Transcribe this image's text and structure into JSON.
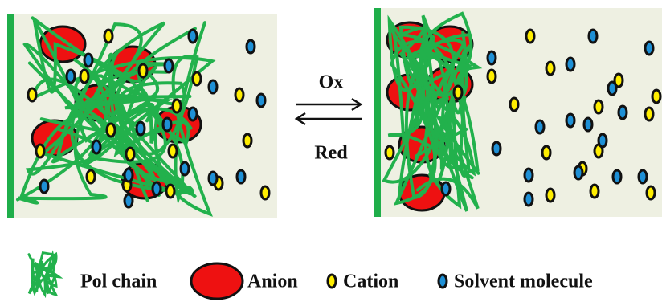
{
  "reaction": {
    "forward": "Ox",
    "reverse": "Red"
  },
  "legend": {
    "items": [
      "Pol chain",
      "Anion",
      "Cation",
      "Solvent molecule"
    ]
  }
}
